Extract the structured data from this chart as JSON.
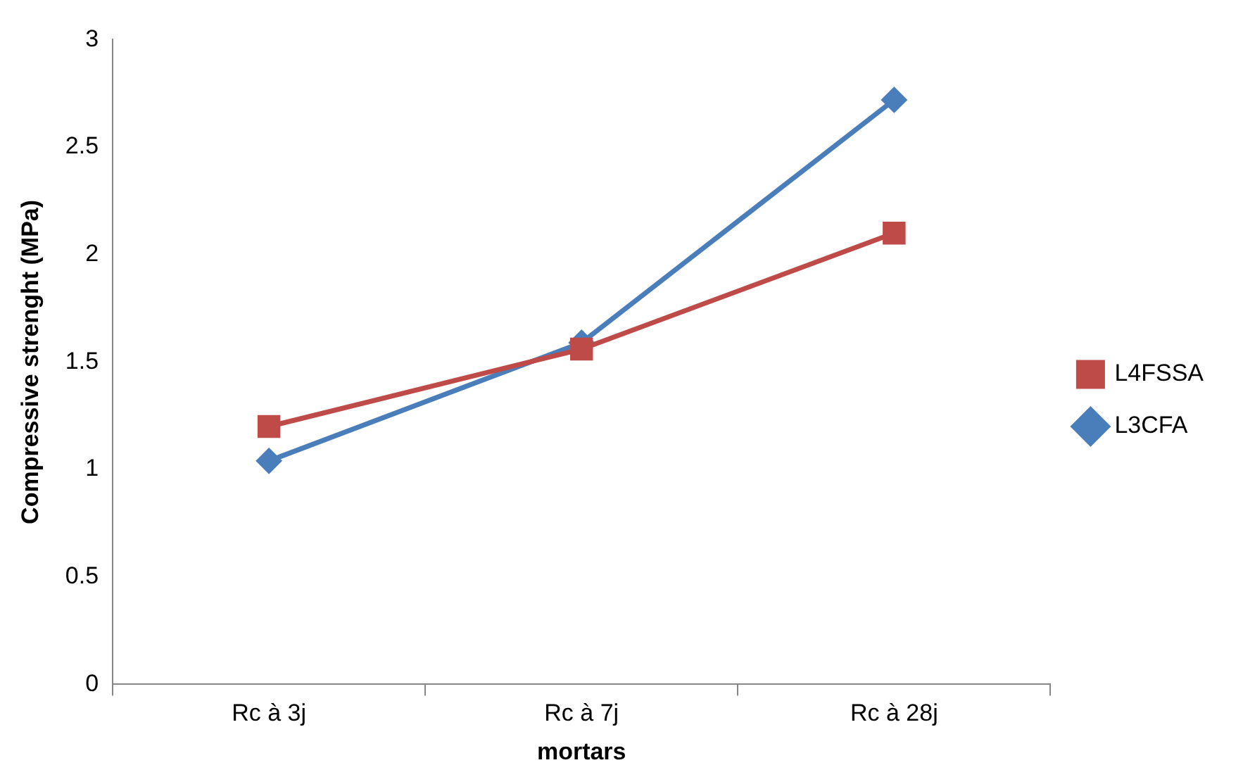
{
  "chart_data": {
    "type": "line",
    "xlabel": "mortars",
    "ylabel": "Compressive strenght (MPa)",
    "categories": [
      "Rc à 3j",
      "Rc à 7j",
      "Rc à 28j"
    ],
    "series": [
      {
        "name": "L3CFA",
        "color": "#4a7ebb",
        "marker": "diamond",
        "values": [
          1.04,
          1.59,
          2.72
        ]
      },
      {
        "name": "L4FSSA",
        "color": "#be4b48",
        "marker": "square",
        "values": [
          1.2,
          1.56,
          2.1
        ]
      }
    ],
    "ylim": [
      0,
      3
    ],
    "yticks": [
      0,
      0.5,
      1,
      1.5,
      2,
      2.5,
      3
    ],
    "grid": false,
    "legend": "right"
  }
}
